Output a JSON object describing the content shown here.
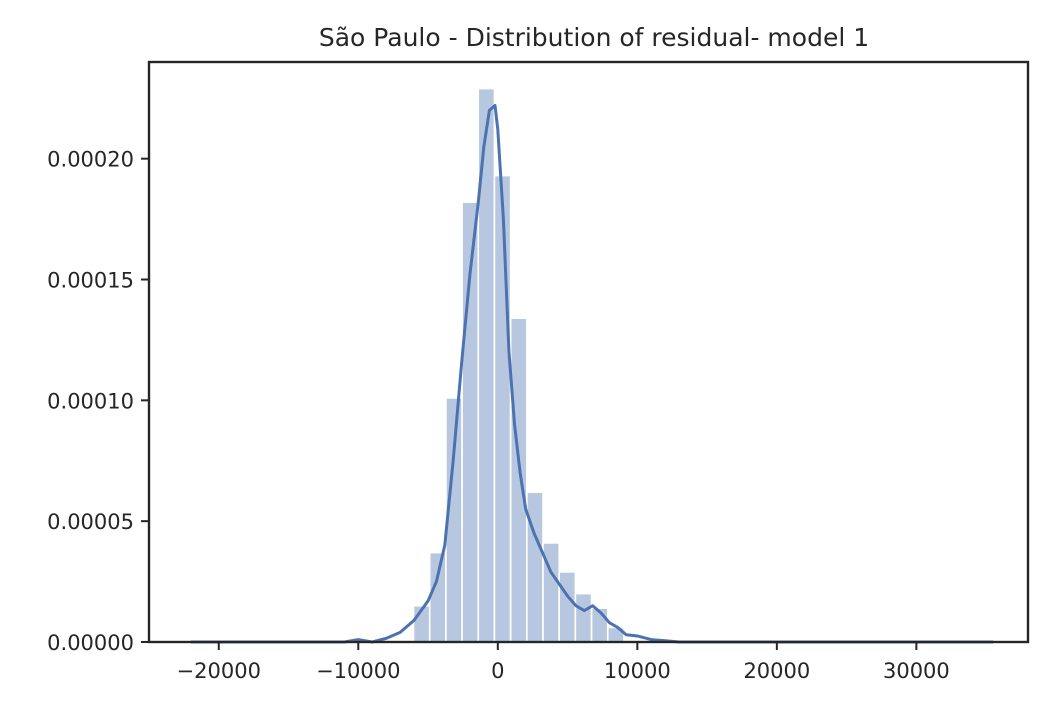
{
  "chart_data": {
    "type": "bar",
    "title": "São Paulo - Distribution of residual- model 1",
    "xlabel": "",
    "ylabel": "",
    "xlim": [
      -25000,
      38000
    ],
    "ylim": [
      0,
      0.00024
    ],
    "x_ticks": [
      -20000,
      -10000,
      0,
      10000,
      20000,
      30000
    ],
    "x_tick_labels": [
      "−20000",
      "−10000",
      "0",
      "10000",
      "20000",
      "30000"
    ],
    "y_ticks": [
      0,
      5e-05,
      0.0001,
      0.00015,
      0.0002
    ],
    "y_tick_labels": [
      "0.00000",
      "0.00005",
      "0.00010",
      "0.00015",
      "0.00020"
    ],
    "grid": false,
    "histogram": {
      "bin_width": 1160,
      "bins": [
        {
          "left": -6040,
          "value": 1.5e-05
        },
        {
          "left": -4880,
          "value": 3.7e-05
        },
        {
          "left": -3720,
          "value": 0.000101
        },
        {
          "left": -2560,
          "value": 0.000182
        },
        {
          "left": -1400,
          "value": 0.000229
        },
        {
          "left": -240,
          "value": 0.000193
        },
        {
          "left": 920,
          "value": 0.000134
        },
        {
          "left": 2080,
          "value": 6.2e-05
        },
        {
          "left": 3240,
          "value": 4.1e-05
        },
        {
          "left": 4400,
          "value": 2.9e-05
        },
        {
          "left": 5560,
          "value": 2e-05
        },
        {
          "left": 6720,
          "value": 1.4e-05
        },
        {
          "left": 7880,
          "value": 6e-06
        }
      ]
    },
    "kde": {
      "x": [
        -22000,
        -18000,
        -14000,
        -11000,
        -10000,
        -9000,
        -8000,
        -7000,
        -6000,
        -5000,
        -4400,
        -3800,
        -3200,
        -2600,
        -2000,
        -1400,
        -1000,
        -600,
        -200,
        0,
        400,
        800,
        1200,
        1600,
        2000,
        2600,
        3200,
        3800,
        4400,
        5000,
        5600,
        6200,
        6800,
        7400,
        8000,
        8600,
        9200,
        10000,
        11000,
        12000,
        13000,
        15000,
        20000,
        25000,
        30000,
        35500
      ],
      "y": [
        0,
        0,
        0,
        0,
        1e-06,
        0,
        1.5e-06,
        4e-06,
        9e-06,
        1.7e-05,
        2.5e-05,
        4e-05,
        7.5e-05,
        0.000115,
        0.000152,
        0.000182,
        0.000205,
        0.00022,
        0.000222,
        0.000212,
        0.000175,
        0.00012,
        9e-05,
        7e-05,
        5.5e-05,
        4.5e-05,
        3.7e-05,
        2.9e-05,
        2.4e-05,
        1.9e-05,
        1.5e-05,
        1.3e-05,
        1.5e-05,
        1.2e-05,
        8e-06,
        6e-06,
        3e-06,
        2.5e-06,
        1e-06,
        5e-07,
        0,
        0,
        0,
        0,
        0,
        0
      ]
    }
  }
}
